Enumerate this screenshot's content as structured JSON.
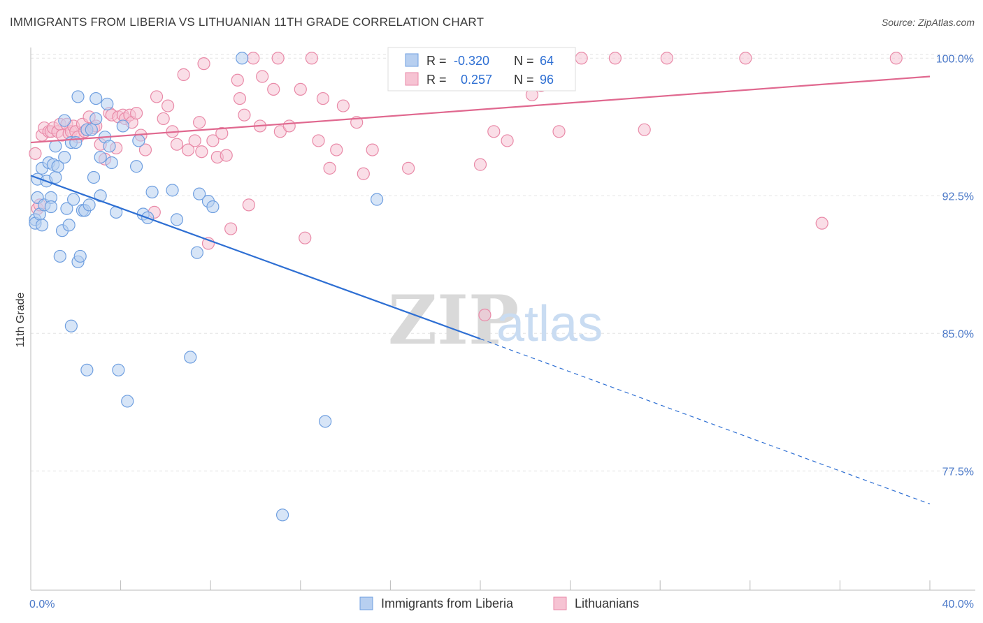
{
  "title": "IMMIGRANTS FROM LIBERIA VS LITHUANIAN 11TH GRADE CORRELATION CHART",
  "source": "Source: ZipAtlas.com",
  "watermark": {
    "zip": "ZIP",
    "atlas": "atlas"
  },
  "colors": {
    "blue": "#6f9fe0",
    "blue_fill": "#b7cff0",
    "blue_line": "#2e6fd3",
    "pink": "#e98aa8",
    "pink_fill": "#f6c3d3",
    "pink_line": "#e0688f",
    "grid": "#e3e3e3",
    "tick_label": "#4a78c8"
  },
  "legend": {
    "rows": [
      {
        "r_label": "R =",
        "r_value": "-0.320",
        "n_label": "N =",
        "n_value": "64"
      },
      {
        "r_label": "R =",
        "r_value": "0.257",
        "n_label": "N =",
        "n_value": "96"
      }
    ]
  },
  "chart_data": {
    "type": "scatter",
    "title": "IMMIGRANTS FROM LIBERIA VS LITHUANIAN 11TH GRADE CORRELATION CHART",
    "xlabel": "",
    "ylabel": "11th Grade",
    "xlim": [
      0,
      40
    ],
    "ylim": [
      71.0,
      101.0
    ],
    "x_tick_labels": [
      "0.0%",
      "40.0%"
    ],
    "y_ticks": [
      77.5,
      85.0,
      92.5,
      100.0
    ],
    "y_tick_labels": [
      "77.5%",
      "85.0%",
      "92.5%",
      "100.0%"
    ],
    "grid": true,
    "legend_position": "top-center",
    "series": [
      {
        "name": "Immigrants from Liberia",
        "color": "#6f9fe0",
        "trend": {
          "x": [
            0.0,
            20.0
          ],
          "y": [
            93.6,
            84.7
          ],
          "dashed_extension": {
            "x": [
              20.0,
              40.0
            ],
            "y": [
              84.7,
              75.7
            ]
          }
        },
        "points": [
          [
            0.2,
            91.2
          ],
          [
            0.2,
            91.0
          ],
          [
            0.3,
            93.4
          ],
          [
            0.3,
            92.4
          ],
          [
            0.4,
            91.5
          ],
          [
            0.5,
            94.0
          ],
          [
            0.5,
            90.9
          ],
          [
            0.6,
            92.0
          ],
          [
            0.7,
            93.3
          ],
          [
            0.8,
            94.3
          ],
          [
            0.9,
            92.4
          ],
          [
            0.9,
            91.9
          ],
          [
            1.0,
            94.2
          ],
          [
            1.1,
            95.2
          ],
          [
            1.1,
            93.5
          ],
          [
            1.2,
            94.1
          ],
          [
            1.3,
            89.2
          ],
          [
            1.4,
            90.6
          ],
          [
            1.5,
            94.6
          ],
          [
            1.5,
            96.6
          ],
          [
            1.6,
            91.8
          ],
          [
            1.7,
            90.9
          ],
          [
            1.8,
            85.4
          ],
          [
            1.8,
            95.4
          ],
          [
            1.9,
            92.3
          ],
          [
            2.0,
            95.4
          ],
          [
            2.1,
            97.9
          ],
          [
            2.1,
            88.9
          ],
          [
            2.2,
            89.2
          ],
          [
            2.3,
            91.7
          ],
          [
            2.4,
            91.7
          ],
          [
            2.5,
            83.0
          ],
          [
            2.5,
            96.1
          ],
          [
            2.6,
            92.0
          ],
          [
            2.7,
            96.1
          ],
          [
            2.8,
            93.5
          ],
          [
            2.9,
            97.8
          ],
          [
            2.9,
            96.7
          ],
          [
            3.1,
            94.6
          ],
          [
            3.1,
            92.5
          ],
          [
            3.3,
            95.7
          ],
          [
            3.4,
            97.5
          ],
          [
            3.5,
            95.2
          ],
          [
            3.6,
            94.3
          ],
          [
            3.8,
            91.6
          ],
          [
            3.9,
            83.0
          ],
          [
            4.1,
            96.3
          ],
          [
            4.3,
            81.3
          ],
          [
            4.7,
            94.1
          ],
          [
            4.8,
            95.5
          ],
          [
            5.0,
            91.5
          ],
          [
            5.2,
            91.3
          ],
          [
            5.4,
            92.7
          ],
          [
            6.3,
            92.8
          ],
          [
            6.5,
            91.2
          ],
          [
            7.1,
            83.7
          ],
          [
            7.4,
            89.4
          ],
          [
            7.5,
            92.6
          ],
          [
            7.9,
            92.2
          ],
          [
            8.1,
            91.9
          ],
          [
            9.4,
            100.0
          ],
          [
            11.2,
            75.1
          ],
          [
            13.1,
            80.2
          ],
          [
            15.4,
            92.3
          ]
        ]
      },
      {
        "name": "Lithuanians",
        "color": "#e98aa8",
        "trend": {
          "x": [
            0.0,
            40.0
          ],
          "y": [
            95.4,
            99.0
          ]
        },
        "points": [
          [
            0.2,
            94.8
          ],
          [
            0.3,
            91.8
          ],
          [
            0.4,
            92.0
          ],
          [
            0.5,
            95.8
          ],
          [
            0.6,
            96.2
          ],
          [
            0.8,
            96.0
          ],
          [
            0.9,
            96.0
          ],
          [
            1.0,
            96.2
          ],
          [
            1.2,
            96.0
          ],
          [
            1.3,
            96.4
          ],
          [
            1.4,
            95.8
          ],
          [
            1.6,
            96.4
          ],
          [
            1.7,
            95.9
          ],
          [
            1.8,
            96.0
          ],
          [
            1.9,
            96.3
          ],
          [
            2.0,
            96.0
          ],
          [
            2.1,
            95.7
          ],
          [
            2.3,
            96.4
          ],
          [
            2.4,
            96.0
          ],
          [
            2.5,
            96.1
          ],
          [
            2.6,
            96.8
          ],
          [
            2.8,
            96.2
          ],
          [
            2.9,
            96.3
          ],
          [
            3.1,
            95.3
          ],
          [
            3.3,
            94.5
          ],
          [
            3.5,
            97.0
          ],
          [
            3.6,
            96.9
          ],
          [
            3.8,
            95.1
          ],
          [
            3.9,
            96.8
          ],
          [
            4.1,
            96.9
          ],
          [
            4.2,
            96.7
          ],
          [
            4.4,
            96.9
          ],
          [
            4.5,
            96.5
          ],
          [
            4.7,
            97.0
          ],
          [
            4.9,
            95.8
          ],
          [
            5.1,
            95.0
          ],
          [
            5.5,
            91.6
          ],
          [
            5.6,
            97.9
          ],
          [
            5.9,
            96.7
          ],
          [
            6.1,
            97.4
          ],
          [
            6.3,
            96.0
          ],
          [
            6.5,
            95.3
          ],
          [
            6.8,
            99.1
          ],
          [
            7.0,
            95.0
          ],
          [
            7.3,
            95.5
          ],
          [
            7.5,
            96.5
          ],
          [
            7.6,
            94.9
          ],
          [
            7.7,
            99.7
          ],
          [
            7.9,
            89.9
          ],
          [
            8.1,
            95.5
          ],
          [
            8.3,
            94.6
          ],
          [
            8.5,
            95.9
          ],
          [
            8.7,
            94.7
          ],
          [
            8.9,
            90.7
          ],
          [
            9.2,
            98.8
          ],
          [
            9.3,
            97.8
          ],
          [
            9.5,
            96.9
          ],
          [
            9.7,
            92.0
          ],
          [
            9.9,
            100.0
          ],
          [
            10.2,
            96.3
          ],
          [
            10.3,
            99.0
          ],
          [
            10.8,
            98.3
          ],
          [
            11.0,
            100.0
          ],
          [
            11.1,
            96.0
          ],
          [
            11.5,
            96.3
          ],
          [
            12.0,
            98.3
          ],
          [
            12.2,
            90.2
          ],
          [
            12.5,
            100.0
          ],
          [
            12.8,
            95.5
          ],
          [
            13.0,
            97.8
          ],
          [
            13.3,
            94.0
          ],
          [
            13.6,
            95.0
          ],
          [
            13.9,
            97.4
          ],
          [
            14.5,
            96.5
          ],
          [
            14.8,
            93.7
          ],
          [
            15.2,
            95.0
          ],
          [
            16.5,
            100.0
          ],
          [
            16.8,
            94.0
          ],
          [
            17.3,
            100.0
          ],
          [
            18.2,
            100.0
          ],
          [
            19.5,
            100.0
          ],
          [
            20.0,
            94.2
          ],
          [
            20.2,
            86.0
          ],
          [
            20.6,
            96.0
          ],
          [
            21.2,
            95.5
          ],
          [
            21.8,
            100.0
          ],
          [
            22.3,
            98.0
          ],
          [
            22.7,
            98.5
          ],
          [
            23.5,
            96.0
          ],
          [
            24.5,
            100.0
          ],
          [
            26.0,
            100.0
          ],
          [
            27.3,
            96.1
          ],
          [
            28.3,
            100.0
          ],
          [
            31.8,
            100.0
          ],
          [
            35.2,
            91.0
          ],
          [
            38.5,
            100.0
          ]
        ]
      }
    ]
  }
}
